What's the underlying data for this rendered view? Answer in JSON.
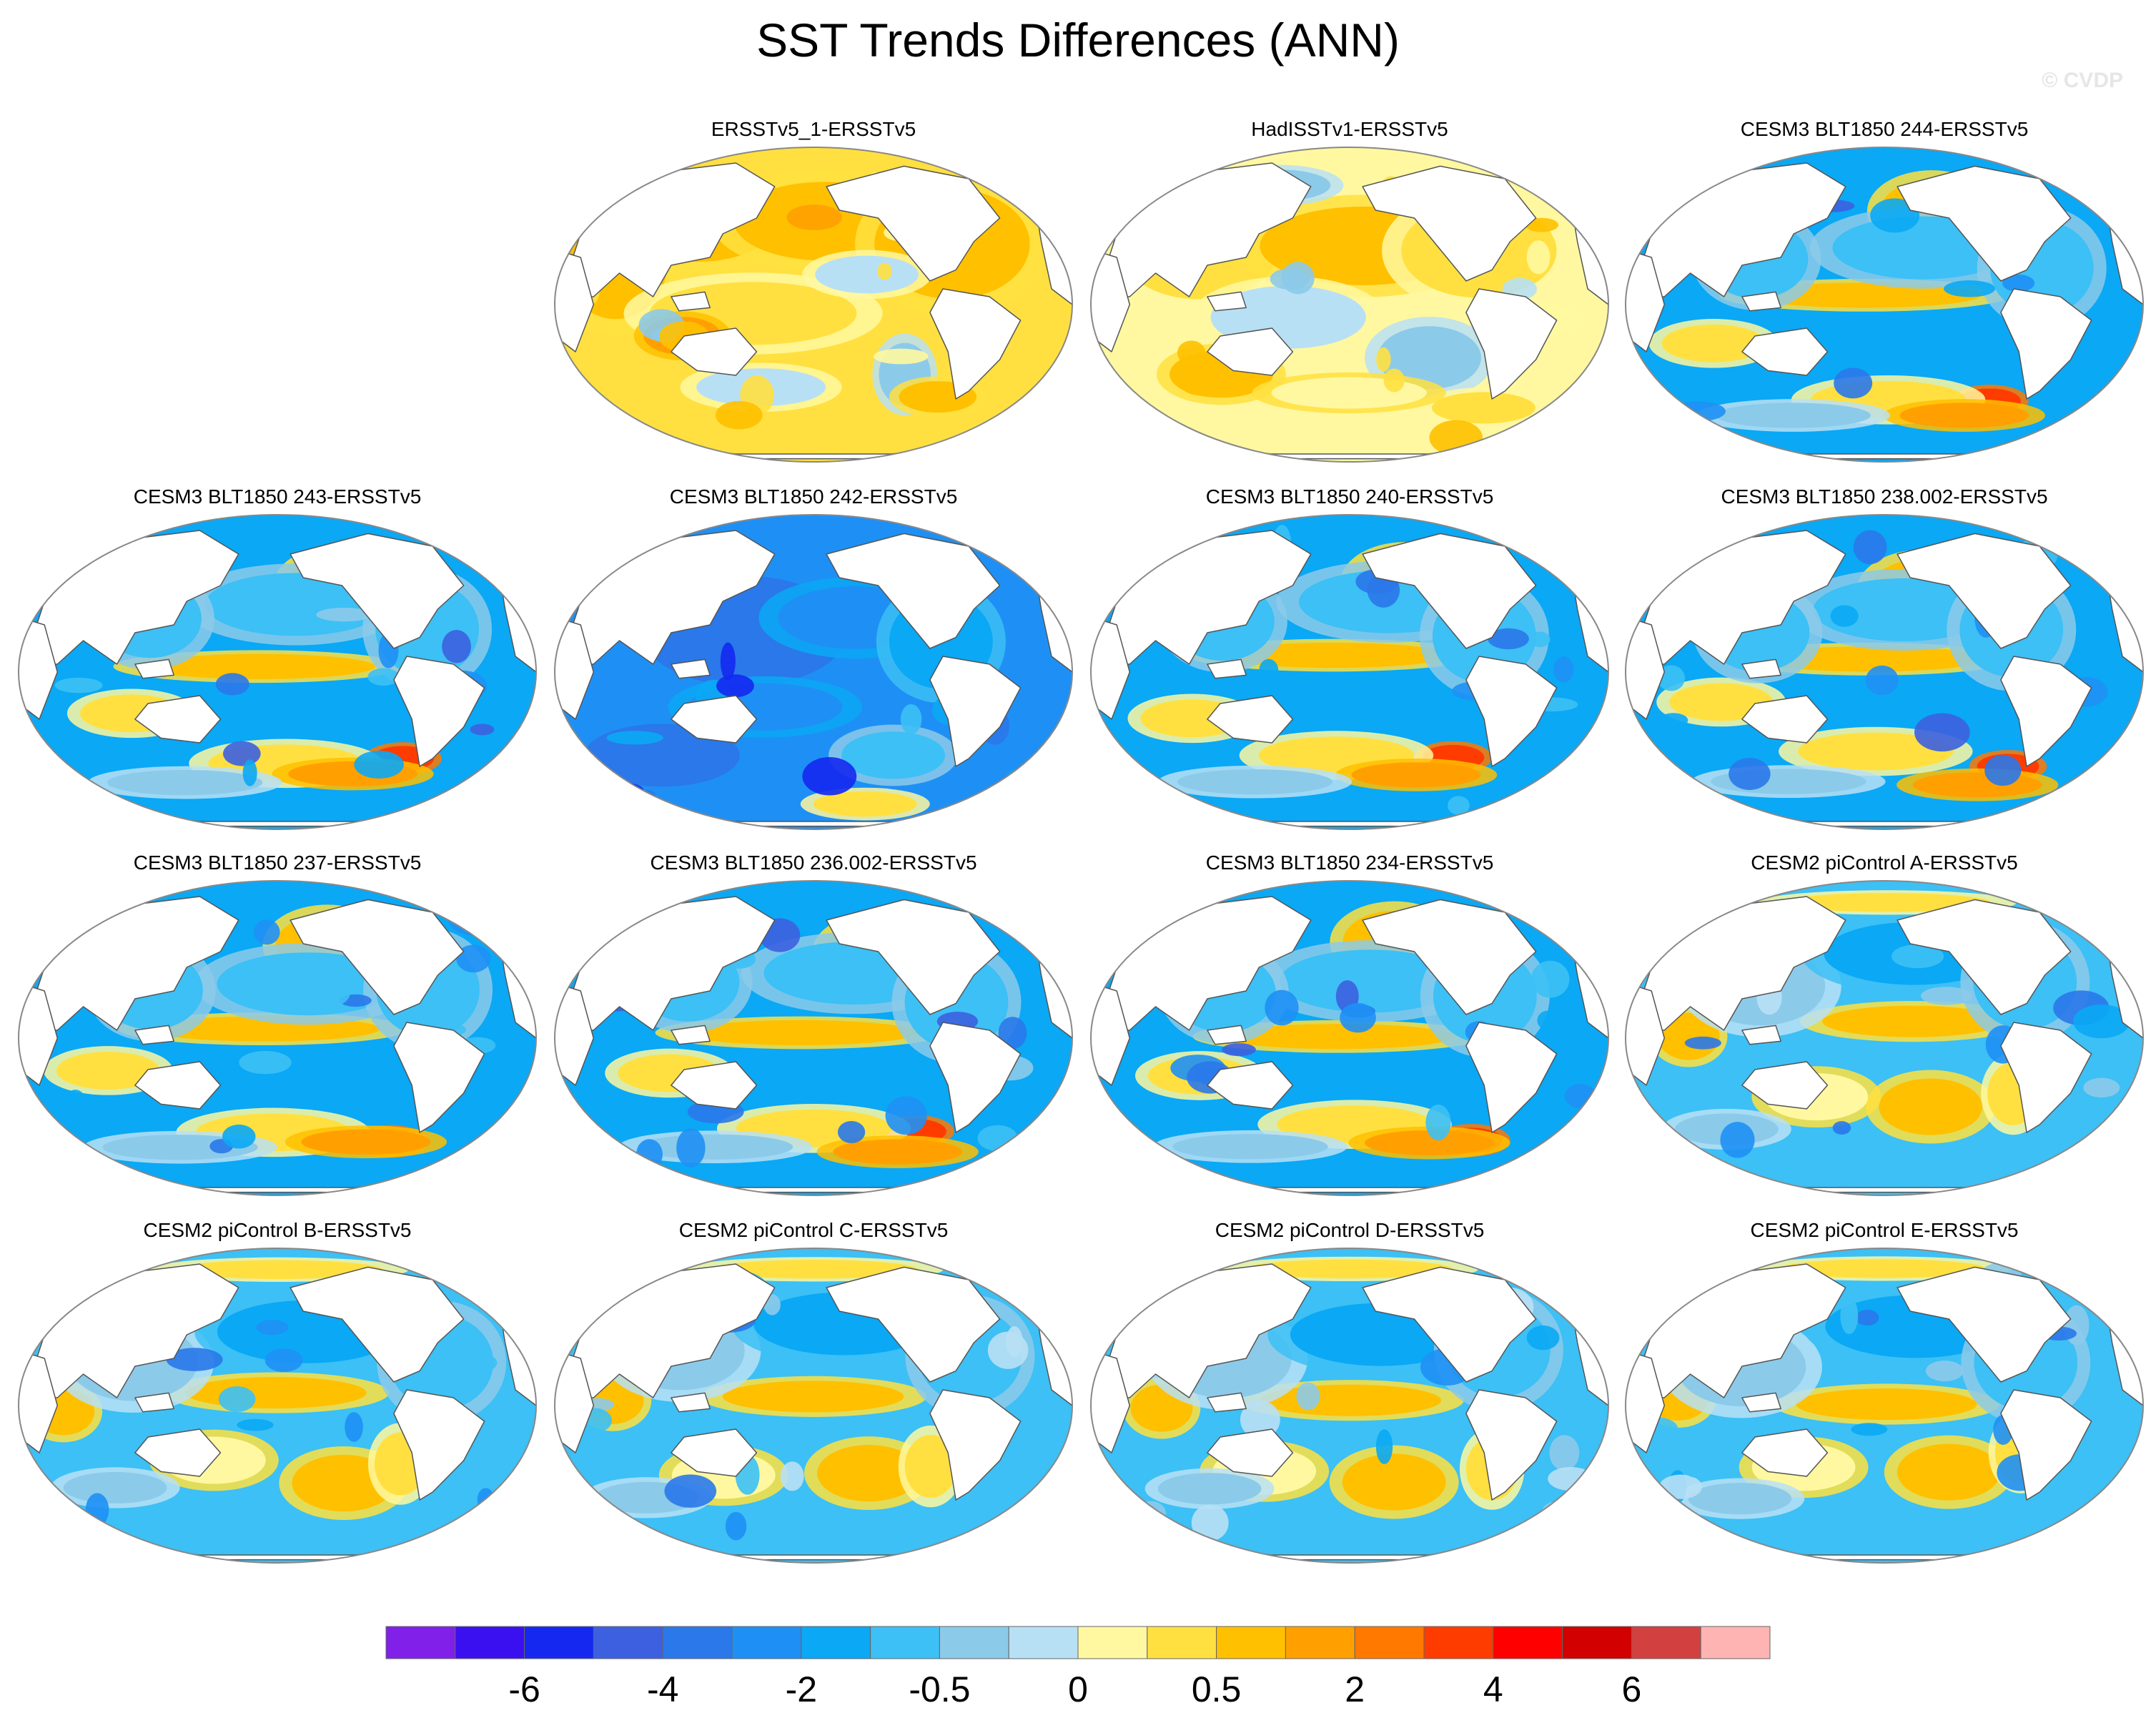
{
  "figure": {
    "title": "SST Trends Differences (ANN)",
    "watermark": "© CVDP"
  },
  "panels": [
    {
      "title": "ERSSTv5_1-ERSSTv5",
      "scheme": "warm_obs"
    },
    {
      "title": "HadISSTv1-ERSSTv5",
      "scheme": "mixed_obs"
    },
    {
      "title": "CESM3 BLT1850 244-ERSSTv5",
      "scheme": "cool_model"
    },
    {
      "title": "CESM3 BLT1850 243-ERSSTv5",
      "scheme": "cool_model"
    },
    {
      "title": "CESM3 BLT1850 242-ERSSTv5",
      "scheme": "cold_model"
    },
    {
      "title": "CESM3 BLT1850 240-ERSSTv5",
      "scheme": "cool_model"
    },
    {
      "title": "CESM3 BLT1850 238.002-ERSSTv5",
      "scheme": "cool_model"
    },
    {
      "title": "CESM3 BLT1850 237-ERSSTv5",
      "scheme": "cool_model"
    },
    {
      "title": "CESM3 BLT1850 236.002-ERSSTv5",
      "scheme": "cool_model"
    },
    {
      "title": "CESM3 BLT1850 234-ERSSTv5",
      "scheme": "cool_model"
    },
    {
      "title": "CESM2 piControl A-ERSSTv5",
      "scheme": "cesm2"
    },
    {
      "title": "CESM2 piControl B-ERSSTv5",
      "scheme": "cesm2"
    },
    {
      "title": "CESM2 piControl C-ERSSTv5",
      "scheme": "cesm2"
    },
    {
      "title": "CESM2 piControl D-ERSSTv5",
      "scheme": "cesm2"
    },
    {
      "title": "CESM2 piControl E-ERSSTv5",
      "scheme": "cesm2"
    }
  ],
  "colorbar": {
    "colors": [
      "#8020e8",
      "#3a10f0",
      "#1428f0",
      "#3c60e0",
      "#2a78ea",
      "#1e90f5",
      "#0aa8f5",
      "#3cc0f5",
      "#8ccaea",
      "#b8e0f5",
      "#fff8a0",
      "#ffe040",
      "#ffc000",
      "#ffa000",
      "#ff7800",
      "#ff3c00",
      "#ff0000",
      "#d20000",
      "#d24040",
      "#ffb4b4"
    ],
    "labels": [
      "-6",
      "-4",
      "-2",
      "-0.5",
      "0",
      "0.5",
      "2",
      "4",
      "6"
    ]
  },
  "palette": {
    "land": "#ffffff",
    "coast": "#555555",
    "border": "#888888"
  }
}
